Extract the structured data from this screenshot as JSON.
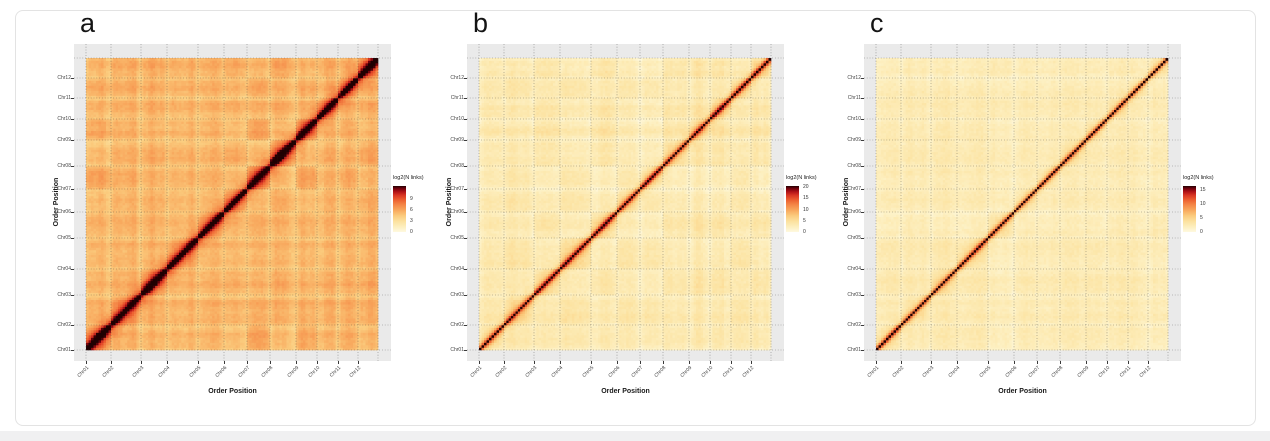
{
  "figure": {
    "background": "#ffffff",
    "card_border": "#e3e3e3",
    "panel_background": "#EAEAEA"
  },
  "chart_data": {
    "type": "heatmap",
    "description": "Three Hi-C style chromosome contact heatmaps (panels a, b, c), chromosome order position vs order position, colored by log2 of number of links",
    "categories": [
      "Chr01",
      "Chr02",
      "Chr03",
      "Chr04",
      "Chr05",
      "Chr06",
      "Chr07",
      "Chr08",
      "Chr09",
      "Chr10",
      "Chr11",
      "Chr12"
    ],
    "category_rel_sizes": [
      25,
      30,
      26,
      31,
      26,
      23,
      23,
      26,
      21,
      21,
      20,
      20
    ],
    "x_axis_title": "Order Position",
    "y_axis_title": "Order Position",
    "legend_title": "log2(N links)",
    "grid": "dotted dark gridlines at chromosome boundaries",
    "colormap_stops": [
      [
        0.0,
        "#FEF9E0"
      ],
      [
        0.1,
        "#FDF0C2"
      ],
      [
        0.22,
        "#FCE3A2"
      ],
      [
        0.35,
        "#FBCC7E"
      ],
      [
        0.48,
        "#F8A75C"
      ],
      [
        0.6,
        "#F48445"
      ],
      [
        0.7,
        "#EC5F30"
      ],
      [
        0.8,
        "#D93523"
      ],
      [
        0.88,
        "#AD1117"
      ],
      [
        0.95,
        "#6B000B"
      ],
      [
        1.0,
        "#200002"
      ]
    ],
    "panels": [
      {
        "label": "a",
        "legend_ticks": [
          9,
          6,
          3,
          0
        ],
        "legend_max": 12.5,
        "heat": {
          "base": 0.46,
          "plaid": 0.1,
          "cross": 0.05,
          "block": 0.18,
          "block_fall": 2.2,
          "diag1": 0.4,
          "diag1_w": 9.0,
          "diag2": 0.48,
          "diag2_w": 2.6,
          "edge": 0.1,
          "seed": 3
        }
      },
      {
        "label": "b",
        "legend_ticks": [
          20,
          15,
          10,
          5,
          0
        ],
        "legend_max": 20.5,
        "heat": {
          "base": 0.18,
          "plaid": 0.09,
          "cross": 0.04,
          "block": 0.15,
          "block_fall": 2.6,
          "diag1": 0.25,
          "diag1_w": 6.0,
          "diag2": 0.72,
          "diag2_w": 2.2,
          "edge": 0.06,
          "seed": 5
        }
      },
      {
        "label": "c",
        "legend_ticks": [
          15,
          10,
          5,
          0
        ],
        "legend_max": 16.5,
        "heat": {
          "base": 0.16,
          "plaid": 0.06,
          "cross": 0.03,
          "block": 0.13,
          "block_fall": 3.0,
          "diag1": 0.2,
          "diag1_w": 5.0,
          "diag2": 0.7,
          "diag2_w": 2.0,
          "edge": 0.05,
          "seed": 8
        }
      }
    ]
  }
}
